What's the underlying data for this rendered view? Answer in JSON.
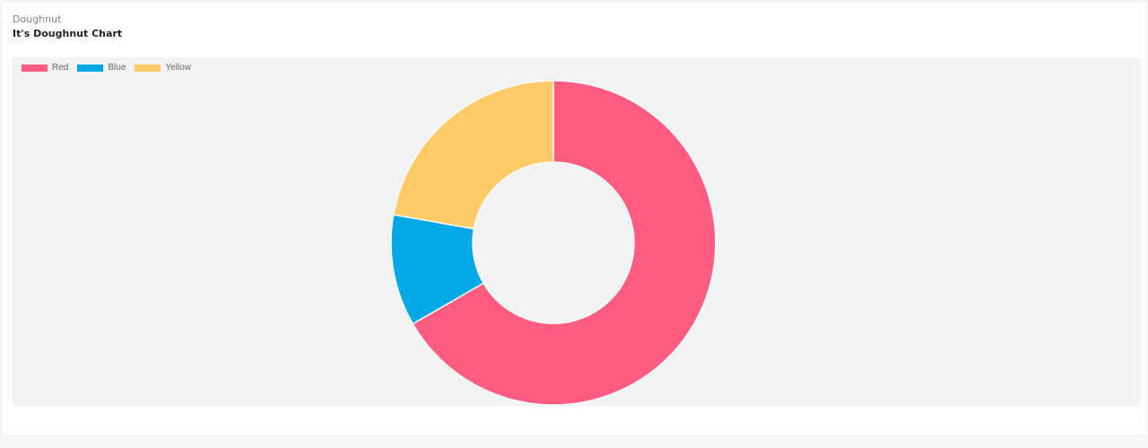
{
  "card": {
    "subtitle": "Doughnut",
    "title": "It's Doughnut Chart"
  },
  "chart_data": {
    "type": "pie",
    "style": "doughnut",
    "categories": [
      "Red",
      "Blue",
      "Yellow"
    ],
    "values": [
      300,
      50,
      100
    ],
    "colors": [
      "#ff5c81",
      "#05a8e6",
      "#ffca68"
    ],
    "legend_position": "top-left",
    "background": "#f2f3f5"
  }
}
